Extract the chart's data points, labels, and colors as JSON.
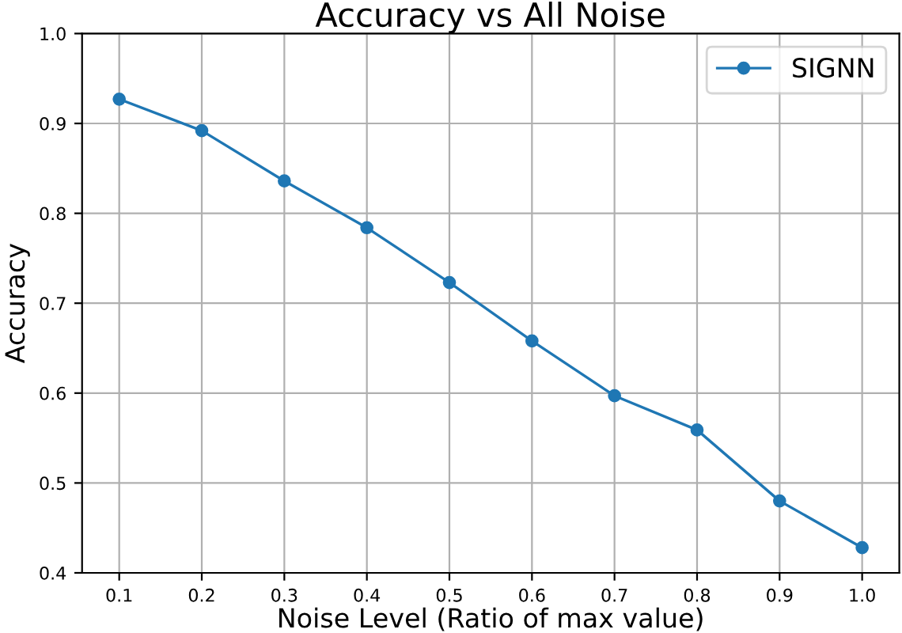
{
  "chart_data": {
    "type": "line",
    "title": "Accuracy vs All Noise",
    "xlabel": "Noise Level (Ratio of max value)",
    "ylabel": "Accuracy",
    "x": [
      0.1,
      0.2,
      0.3,
      0.4,
      0.5,
      0.6,
      0.7,
      0.8,
      0.9,
      1.0
    ],
    "series": [
      {
        "name": "SIGNN",
        "color": "#1f77b4",
        "values": [
          0.927,
          0.892,
          0.836,
          0.784,
          0.723,
          0.658,
          0.597,
          0.559,
          0.48,
          0.428
        ]
      }
    ],
    "xlim": [
      0.055,
      1.045
    ],
    "xticks": [
      0.1,
      0.2,
      0.3,
      0.4,
      0.5,
      0.6,
      0.7,
      0.8,
      0.9,
      {
        "value": 1,
        "label": "1.0"
      }
    ],
    "ylim": [
      0.4,
      1.0
    ],
    "yticks": [
      0.4,
      0.5,
      0.6,
      0.7,
      0.8,
      0.9,
      {
        "value": 1,
        "label": "1.0"
      }
    ],
    "grid": true,
    "legend": "top right",
    "marker": "circle",
    "line_style": "solid"
  }
}
